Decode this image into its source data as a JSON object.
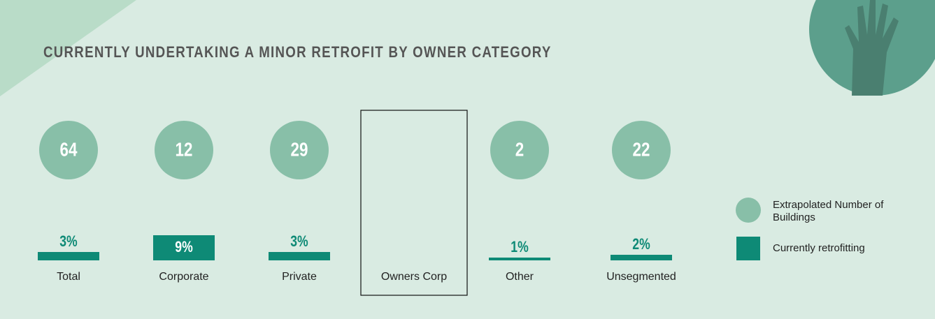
{
  "chart_data": {
    "type": "bar",
    "title": "CURRENTLY UNDERTAKING A MINOR RETROFIT BY OWNER CATEGORY",
    "categories": [
      "Total",
      "Corporate",
      "Private",
      "Owners Corp",
      "Other",
      "Unsegmented"
    ],
    "series": [
      {
        "name": "Extrapolated Number of Buildings",
        "color": "#88bfa8",
        "values": [
          64,
          12,
          29,
          null,
          2,
          22
        ]
      },
      {
        "name": "Currently retrofitting",
        "color": "#0e8a76",
        "values": [
          3,
          9,
          3,
          null,
          1,
          2
        ],
        "value_labels": [
          "3%",
          "9%",
          "3%",
          null,
          "1%",
          "2%"
        ]
      }
    ]
  }
}
